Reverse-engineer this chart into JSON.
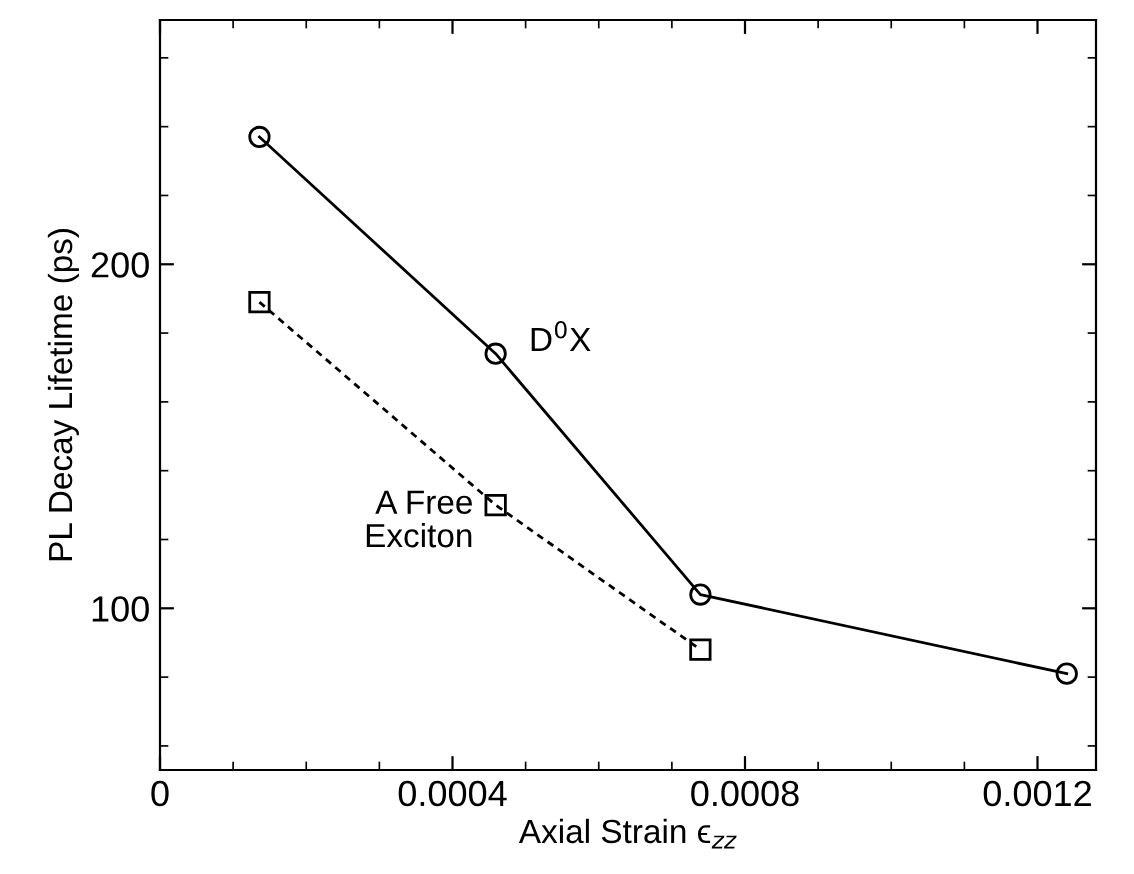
{
  "chart_data": {
    "type": "line",
    "xlabel": "Axial Strain ϵ$_{zz}$",
    "ylabel": "PL Decay Lifetime (ps)",
    "series": [
      {
        "name": "D$^{0}$X",
        "x": [
          0.000136,
          0.000459,
          0.000739,
          0.00124
        ],
        "values": [
          237,
          174,
          104,
          81
        ],
        "color": "#000000",
        "marker": "circle",
        "line_style": "solid"
      },
      {
        "name": "A Free\nExciton",
        "x": [
          0.000136,
          0.000459,
          0.000739
        ],
        "values": [
          189,
          130,
          88
        ],
        "color": "#000000",
        "marker": "square",
        "line_style": "dashed"
      }
    ],
    "xlim": [
      0,
      0.00128
    ],
    "xticks": [
      0,
      0.0004,
      0.0008,
      0.0012
    ],
    "ylim": [
      53,
      271
    ],
    "yticks": [
      100,
      200
    ],
    "grid": false
  }
}
